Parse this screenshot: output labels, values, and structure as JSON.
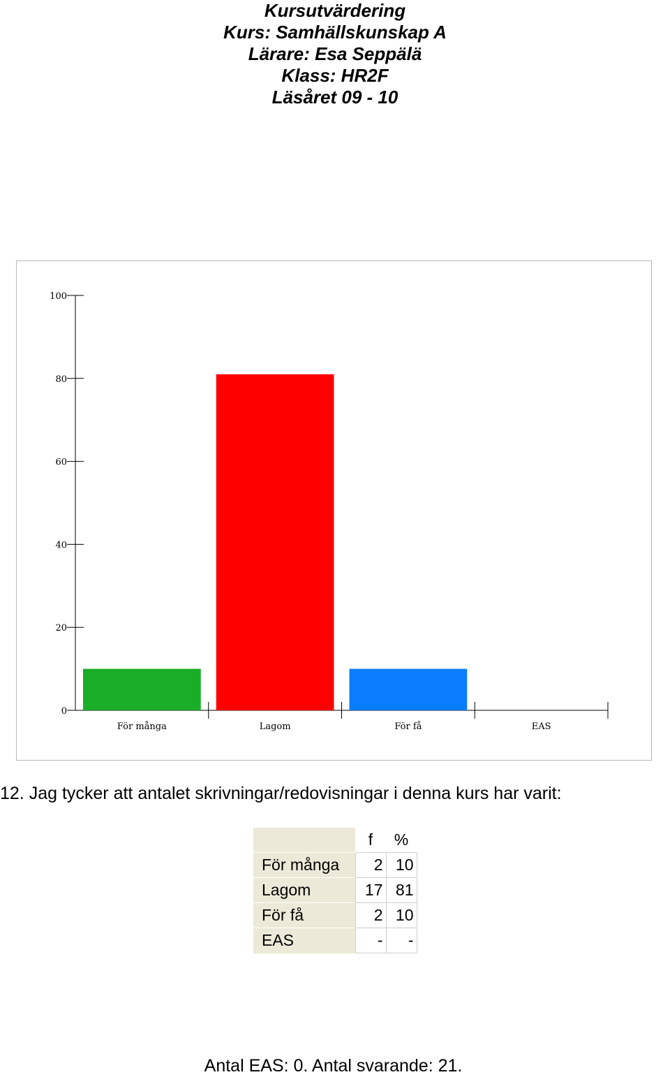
{
  "header": {
    "title": "Kursutvärdering",
    "course": "Kurs: Samhällskunskap A",
    "teacher": "Lärare: Esa Seppälä",
    "class": "Klass: HR2F",
    "year": "Läsåret 09 - 10"
  },
  "question": "12. Jag tycker att antalet skrivningar/redovisningar i denna kurs har varit:",
  "chart_data": {
    "type": "bar",
    "categories": [
      "För många",
      "Lagom",
      "För få",
      "EAS"
    ],
    "values": [
      10,
      81,
      10,
      0
    ],
    "colors": [
      "#1aad27",
      "#ff0000",
      "#0a7dff",
      "#ffffff"
    ],
    "ylim": [
      0,
      100
    ],
    "yticks": [
      "0",
      "20",
      "40",
      "60",
      "80",
      "100"
    ],
    "title": "",
    "xlabel": "",
    "ylabel": "",
    "grid": false
  },
  "table": {
    "headers": [
      "f",
      "%"
    ],
    "rows": [
      {
        "label": "För många",
        "f": "2",
        "pct": "10"
      },
      {
        "label": "Lagom",
        "f": "17",
        "pct": "81"
      },
      {
        "label": "För få",
        "f": "2",
        "pct": "10"
      },
      {
        "label": "EAS",
        "f": "-",
        "pct": "-"
      }
    ]
  },
  "footer": "Antal EAS: 0. Antal svarande:  21."
}
